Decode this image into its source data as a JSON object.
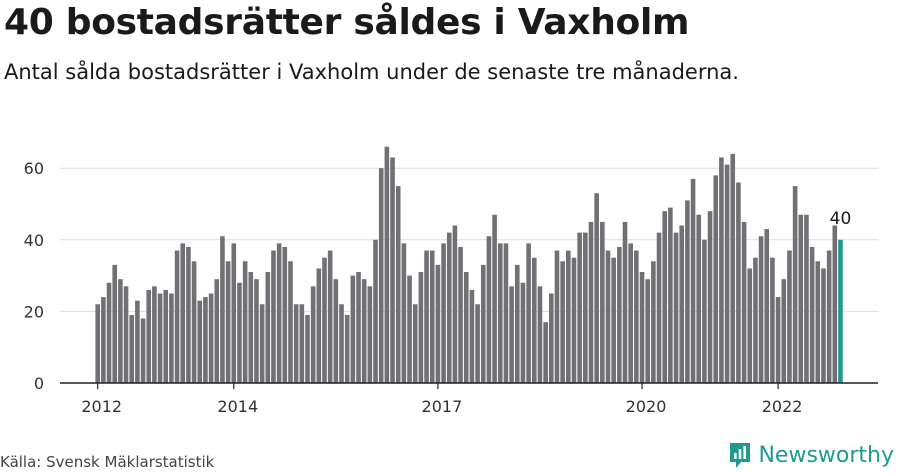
{
  "title": "40 bostadsrätter såldes i Vaxholm",
  "subtitle": "Antal sålda bostadsrätter i Vaxholm under de senaste tre månaderna.",
  "source": "Källa: Svensk Mäklarstatistik",
  "brand": {
    "name": "Newsworthy",
    "icon": "newsworthy-logo-icon",
    "color": "#1e9a90"
  },
  "colors": {
    "bar": "#707075",
    "highlight": "#1e9a90",
    "grid": "#dddddd",
    "axis": "#222222"
  },
  "chart_data": {
    "type": "bar",
    "title": "",
    "xlabel": "",
    "ylabel": "",
    "ylim": [
      0,
      70
    ],
    "yticks": [
      0,
      20,
      40,
      60
    ],
    "grid": true,
    "x_start": "2012-01",
    "x_tick_labels": [
      {
        "label": "2012",
        "index": 0
      },
      {
        "label": "2014",
        "index": 24
      },
      {
        "label": "2017",
        "index": 60
      },
      {
        "label": "2020",
        "index": 96
      },
      {
        "label": "2022",
        "index": 120
      }
    ],
    "values": [
      22,
      24,
      28,
      33,
      29,
      27,
      19,
      23,
      18,
      26,
      27,
      25,
      26,
      25,
      37,
      39,
      38,
      34,
      23,
      24,
      25,
      29,
      41,
      34,
      39,
      28,
      34,
      31,
      29,
      22,
      31,
      37,
      39,
      38,
      34,
      22,
      22,
      19,
      27,
      32,
      35,
      37,
      29,
      22,
      19,
      30,
      31,
      29,
      27,
      40,
      60,
      66,
      63,
      55,
      39,
      30,
      22,
      31,
      37,
      37,
      33,
      39,
      42,
      44,
      38,
      31,
      26,
      22,
      33,
      41,
      47,
      39,
      39,
      27,
      33,
      28,
      39,
      35,
      27,
      17,
      25,
      37,
      34,
      37,
      35,
      42,
      42,
      45,
      53,
      45,
      37,
      35,
      38,
      45,
      39,
      37,
      31,
      29,
      34,
      42,
      48,
      49,
      42,
      44,
      51,
      57,
      47,
      40,
      48,
      58,
      63,
      61,
      64,
      56,
      45,
      32,
      35,
      41,
      43,
      35,
      24,
      29,
      37,
      55,
      47,
      47,
      38,
      34,
      32,
      37,
      44,
      40
    ],
    "highlight_index": 131,
    "highlight_label": "40"
  }
}
